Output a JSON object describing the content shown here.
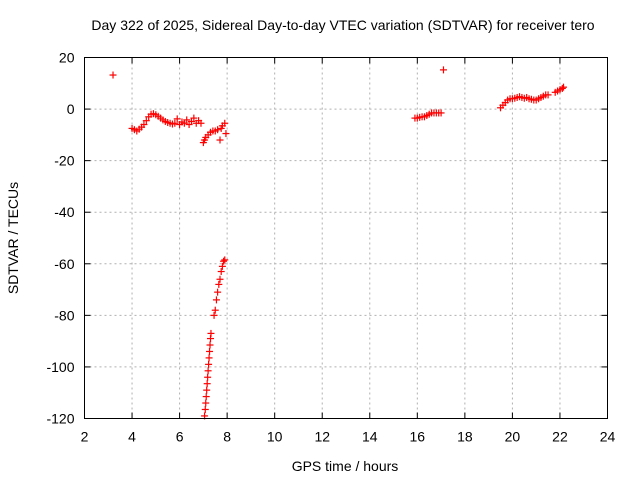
{
  "chart_data": {
    "type": "scatter",
    "title": "Day 322 of 2025, Sidereal Day-to-day VTEC variation (SDTVAR) for receiver tero",
    "xlabel": "GPS time / hours",
    "ylabel": "SDTVAR / TECUs",
    "xlim": [
      2,
      24
    ],
    "ylim": [
      -120,
      20
    ],
    "xticks": [
      2,
      4,
      6,
      8,
      10,
      12,
      14,
      16,
      18,
      20,
      22,
      24
    ],
    "yticks": [
      20,
      0,
      -20,
      -40,
      -60,
      -80,
      -100,
      -120
    ],
    "grid": true,
    "marker": "plus",
    "color": "#ff0000",
    "series": [
      {
        "name": "SDTVAR",
        "points": [
          [
            3.2,
            13.2
          ],
          [
            4.0,
            -7.5
          ],
          [
            4.1,
            -8.0
          ],
          [
            4.2,
            -8.5
          ],
          [
            4.3,
            -7.8
          ],
          [
            4.4,
            -7.0
          ],
          [
            4.5,
            -6.0
          ],
          [
            4.6,
            -4.5
          ],
          [
            4.7,
            -3.0
          ],
          [
            4.8,
            -2.0
          ],
          [
            4.9,
            -1.8
          ],
          [
            5.0,
            -2.2
          ],
          [
            5.1,
            -2.8
          ],
          [
            5.2,
            -3.5
          ],
          [
            5.3,
            -4.2
          ],
          [
            5.4,
            -4.8
          ],
          [
            5.5,
            -5.2
          ],
          [
            5.6,
            -5.5
          ],
          [
            5.7,
            -5.8
          ],
          [
            5.8,
            -5.5
          ],
          [
            5.9,
            -3.8
          ],
          [
            6.0,
            -6.0
          ],
          [
            6.1,
            -5.0
          ],
          [
            6.2,
            -5.5
          ],
          [
            6.3,
            -4.2
          ],
          [
            6.4,
            -6.0
          ],
          [
            6.5,
            -4.8
          ],
          [
            6.6,
            -3.5
          ],
          [
            6.7,
            -5.5
          ],
          [
            6.8,
            -4.5
          ],
          [
            6.9,
            -5.5
          ],
          [
            7.0,
            -13.0
          ],
          [
            7.05,
            -12.0
          ],
          [
            7.1,
            -11.0
          ],
          [
            7.2,
            -10.0
          ],
          [
            7.3,
            -9.0
          ],
          [
            7.4,
            -8.5
          ],
          [
            7.5,
            -8.5
          ],
          [
            7.6,
            -8.0
          ],
          [
            7.7,
            -12.0
          ],
          [
            7.75,
            -7.5
          ],
          [
            7.8,
            -6.5
          ],
          [
            7.9,
            -5.5
          ],
          [
            7.95,
            -9.5
          ],
          [
            7.05,
            -119.0
          ],
          [
            7.08,
            -116.5
          ],
          [
            7.1,
            -114.0
          ],
          [
            7.12,
            -111.5
          ],
          [
            7.14,
            -109.0
          ],
          [
            7.16,
            -106.5
          ],
          [
            7.18,
            -104.0
          ],
          [
            7.2,
            -101.5
          ],
          [
            7.22,
            -99.0
          ],
          [
            7.24,
            -96.5
          ],
          [
            7.26,
            -94.0
          ],
          [
            7.28,
            -91.5
          ],
          [
            7.3,
            -89.0
          ],
          [
            7.32,
            -87.0
          ],
          [
            7.45,
            -80.0
          ],
          [
            7.5,
            -78.0
          ],
          [
            7.55,
            -74.0
          ],
          [
            7.6,
            -71.0
          ],
          [
            7.65,
            -68.0
          ],
          [
            7.7,
            -66.0
          ],
          [
            7.75,
            -63.0
          ],
          [
            7.8,
            -61.0
          ],
          [
            7.85,
            -59.0
          ],
          [
            7.9,
            -58.5
          ],
          [
            15.9,
            -3.5
          ],
          [
            16.0,
            -3.5
          ],
          [
            16.1,
            -3.2
          ],
          [
            16.2,
            -3.0
          ],
          [
            16.3,
            -3.0
          ],
          [
            16.4,
            -2.5
          ],
          [
            16.5,
            -2.0
          ],
          [
            16.6,
            -1.5
          ],
          [
            16.7,
            -1.5
          ],
          [
            16.8,
            -1.5
          ],
          [
            16.9,
            -1.5
          ],
          [
            17.0,
            -1.5
          ],
          [
            17.1,
            15.2
          ],
          [
            19.5,
            0.5
          ],
          [
            19.6,
            1.5
          ],
          [
            19.7,
            2.5
          ],
          [
            19.8,
            3.5
          ],
          [
            19.9,
            4.0
          ],
          [
            20.0,
            4.0
          ],
          [
            20.1,
            4.2
          ],
          [
            20.2,
            4.5
          ],
          [
            20.3,
            4.8
          ],
          [
            20.4,
            4.5
          ],
          [
            20.5,
            4.2
          ],
          [
            20.6,
            4.5
          ],
          [
            20.7,
            4.0
          ],
          [
            20.8,
            3.8
          ],
          [
            20.9,
            3.5
          ],
          [
            21.0,
            3.5
          ],
          [
            21.1,
            4.0
          ],
          [
            21.2,
            4.5
          ],
          [
            21.3,
            5.0
          ],
          [
            21.4,
            5.5
          ],
          [
            21.5,
            5.5
          ],
          [
            21.8,
            6.5
          ],
          [
            21.9,
            7.0
          ],
          [
            22.0,
            7.5
          ],
          [
            22.1,
            8.0
          ],
          [
            22.15,
            8.5
          ]
        ]
      }
    ]
  }
}
